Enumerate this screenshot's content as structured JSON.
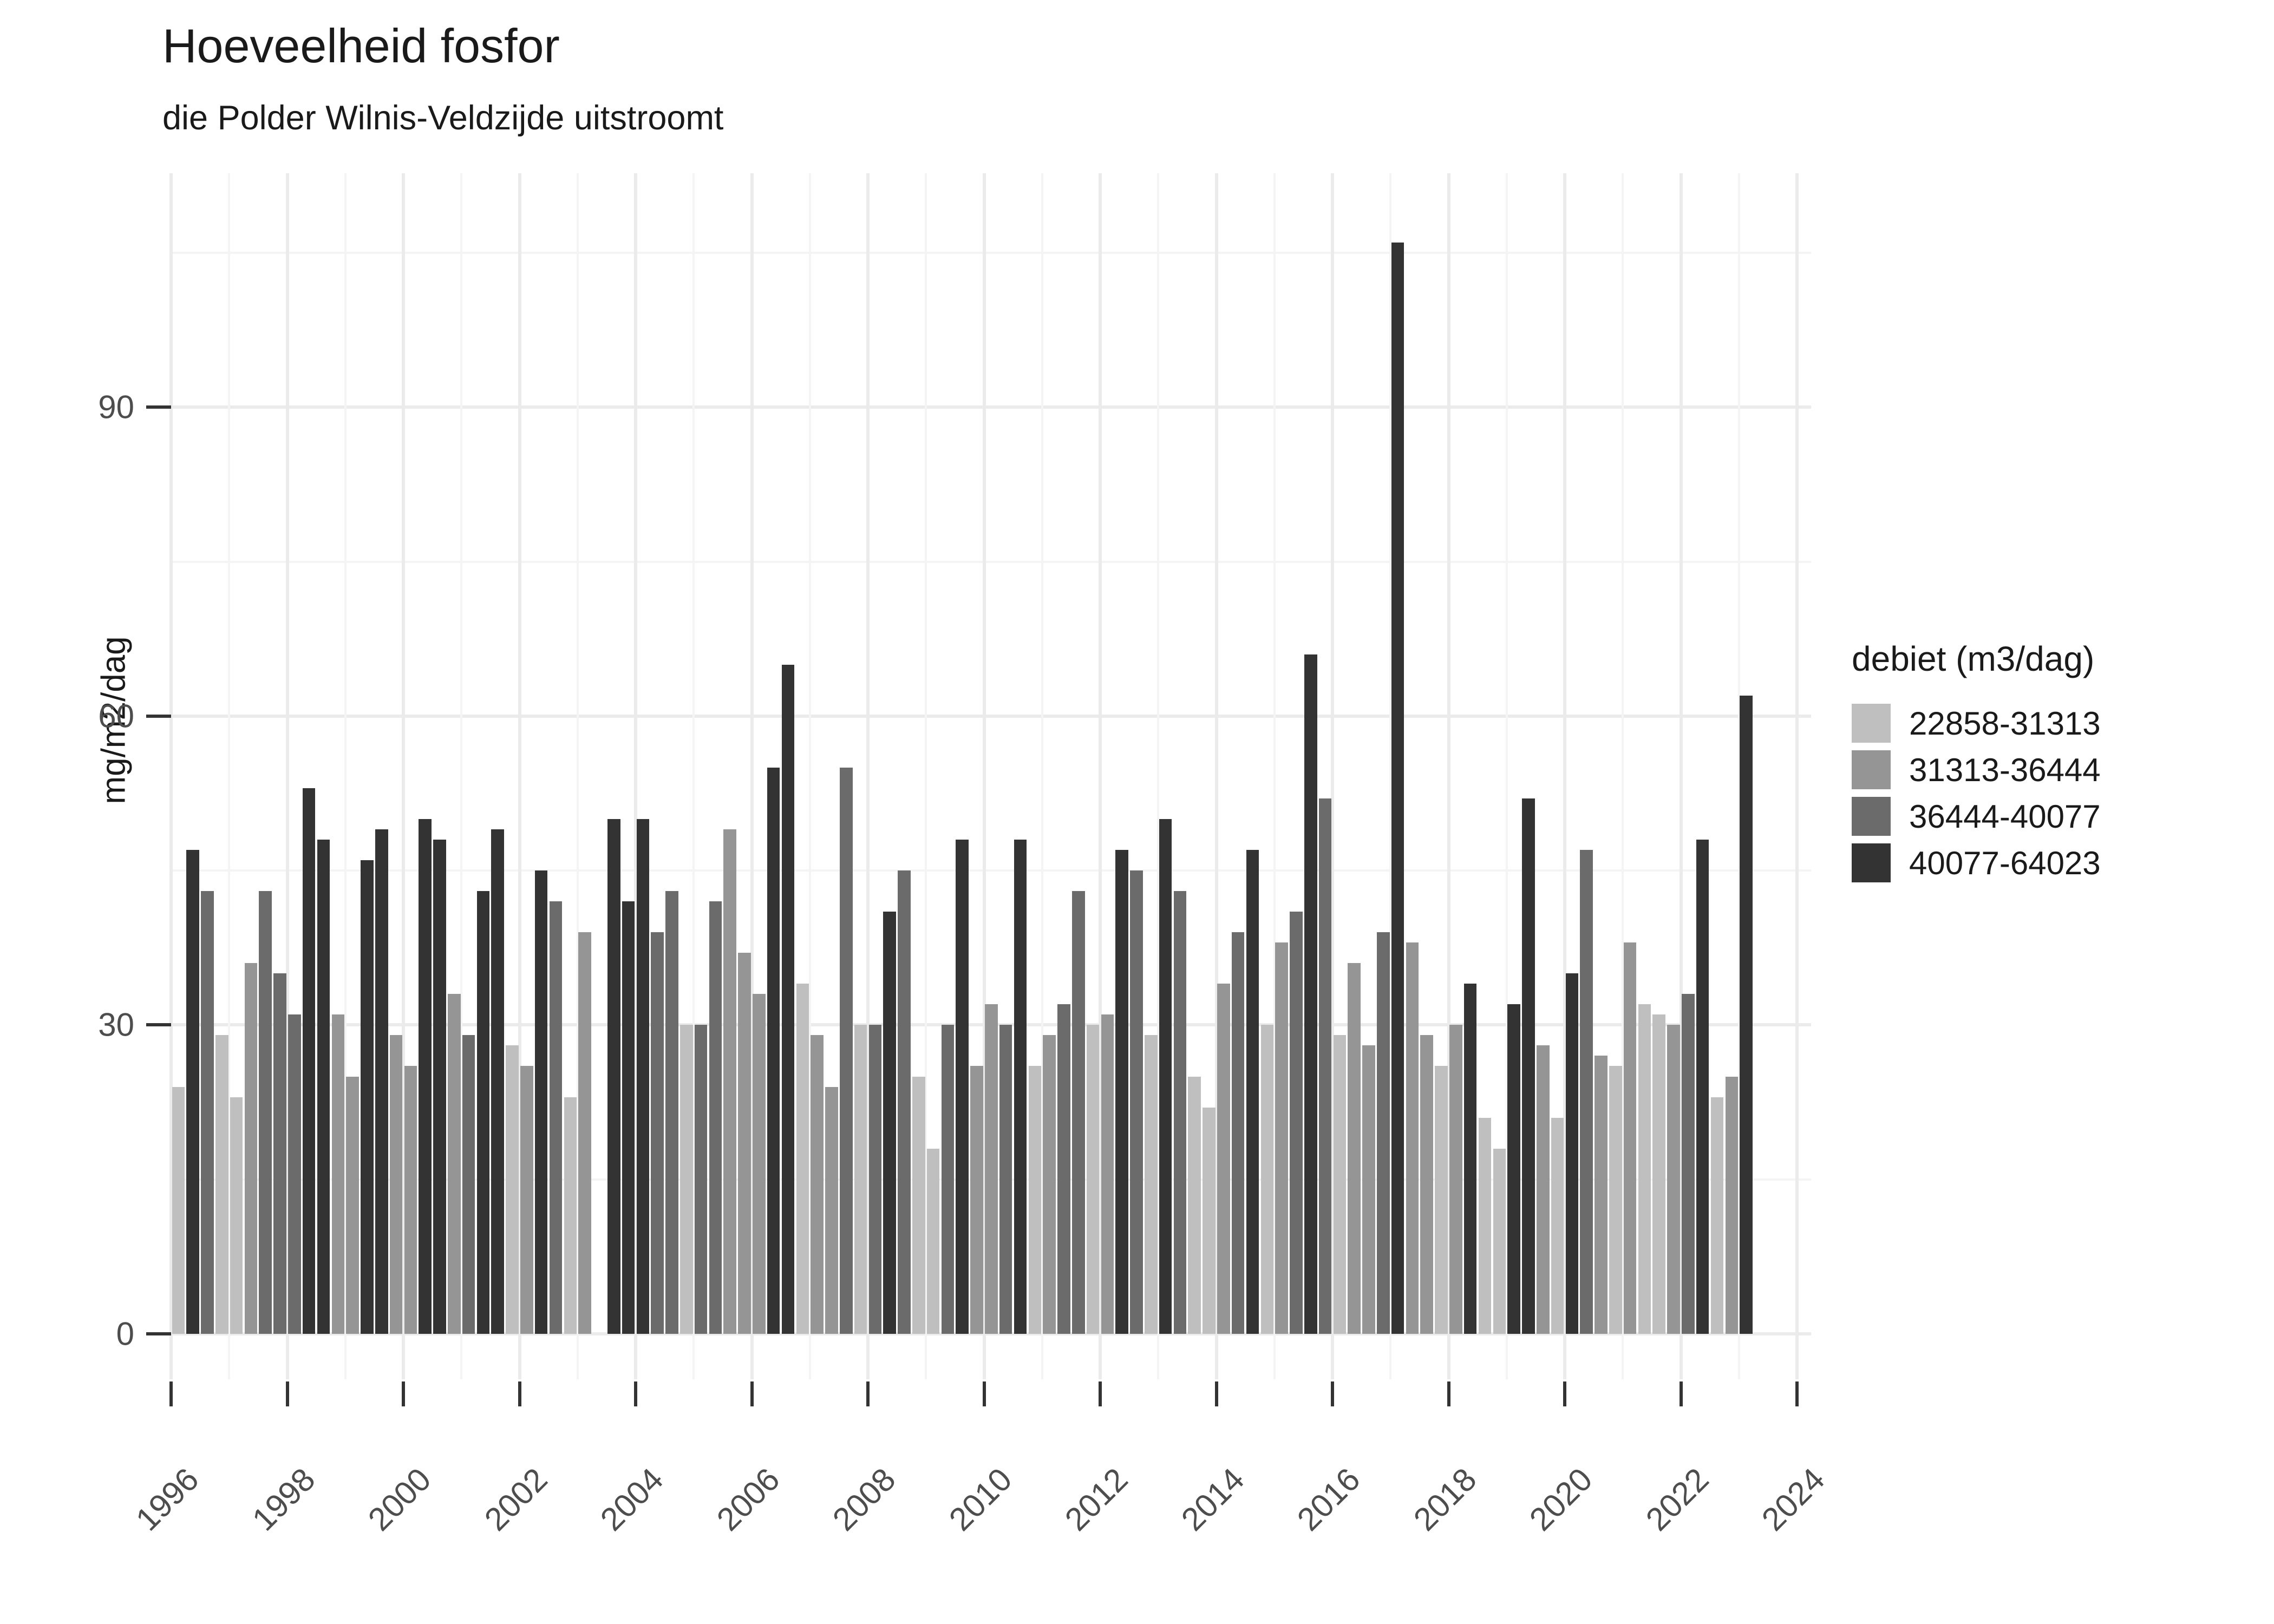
{
  "chart_data": {
    "type": "bar",
    "title": "Hoeveelheid fosfor",
    "subtitle": "die Polder Wilnis-Veldzijde uitstroomt",
    "ylabel": "mg/m2/dag",
    "xlabel": "",
    "grid": "on",
    "legend_position": "right",
    "legend": {
      "title": "debiet (m3/dag)",
      "entries": [
        {
          "label": "22858-31313",
          "color": "#bfbfbf"
        },
        {
          "label": "31313-36444",
          "color": "#959595"
        },
        {
          "label": "36444-40077",
          "color": "#6b6b6b"
        },
        {
          "label": "40077-64023",
          "color": "#333333"
        }
      ]
    },
    "y_axis": {
      "ticks": [
        0,
        30,
        60,
        90
      ],
      "minor_ticks": [
        15,
        45,
        75,
        105
      ],
      "ylim": [
        0,
        117
      ]
    },
    "x_axis": {
      "major_years": [
        1996,
        1998,
        2000,
        2002,
        2004,
        2006,
        2008,
        2010,
        2012,
        2014,
        2016,
        2018,
        2020,
        2022,
        2024
      ],
      "minor_years": [
        1997,
        1999,
        2001,
        2003,
        2005,
        2007,
        2009,
        2011,
        2013,
        2015,
        2017,
        2019,
        2021,
        2023
      ],
      "range": [
        1996,
        2024
      ]
    },
    "bars_note": "cat is an index into legend.entries; v is mg/m2/dag; s is season slot 0-3 within year",
    "years": [
      {
        "year": 1996,
        "bars": [
          {
            "cat": 0,
            "v": 24
          },
          {
            "cat": 3,
            "v": 47
          },
          {
            "cat": 2,
            "v": 43
          },
          {
            "cat": 0,
            "v": 29
          }
        ]
      },
      {
        "year": 1997,
        "bars": [
          {
            "cat": 0,
            "v": 23
          },
          {
            "cat": 1,
            "v": 36
          },
          {
            "cat": 2,
            "v": 43
          },
          {
            "cat": 2,
            "v": 35
          }
        ]
      },
      {
        "year": 1998,
        "bars": [
          {
            "cat": 2,
            "v": 31
          },
          {
            "cat": 3,
            "v": 53
          },
          {
            "cat": 3,
            "v": 48
          },
          {
            "cat": 1,
            "v": 31
          }
        ]
      },
      {
        "year": 1999,
        "bars": [
          {
            "cat": 1,
            "v": 25
          },
          {
            "cat": 3,
            "v": 46
          },
          {
            "cat": 3,
            "v": 49
          },
          {
            "cat": 1,
            "v": 29
          }
        ]
      },
      {
        "year": 2000,
        "bars": [
          {
            "cat": 1,
            "v": 26
          },
          {
            "cat": 3,
            "v": 50
          },
          {
            "cat": 3,
            "v": 48
          },
          {
            "cat": 1,
            "v": 33
          }
        ]
      },
      {
        "year": 2001,
        "bars": [
          {
            "cat": 2,
            "v": 29
          },
          {
            "cat": 3,
            "v": 43
          },
          {
            "cat": 3,
            "v": 49
          },
          {
            "cat": 0,
            "v": 28
          }
        ]
      },
      {
        "year": 2002,
        "bars": [
          {
            "cat": 1,
            "v": 26
          },
          {
            "cat": 3,
            "v": 45
          },
          {
            "cat": 2,
            "v": 42
          },
          {
            "cat": 0,
            "v": 23
          }
        ]
      },
      {
        "year": 2003,
        "bars": [
          {
            "cat": 1,
            "v": 39,
            "s": 0
          },
          {
            "cat": 3,
            "v": 50,
            "s": 2
          },
          {
            "cat": 3,
            "v": 42,
            "s": 3
          }
        ]
      },
      {
        "year": 2004,
        "bars": [
          {
            "cat": 3,
            "v": 50
          },
          {
            "cat": 2,
            "v": 39
          },
          {
            "cat": 2,
            "v": 43
          },
          {
            "cat": 0,
            "v": 30
          }
        ]
      },
      {
        "year": 2005,
        "bars": [
          {
            "cat": 2,
            "v": 30
          },
          {
            "cat": 2,
            "v": 42
          },
          {
            "cat": 1,
            "v": 49
          },
          {
            "cat": 1,
            "v": 37
          }
        ]
      },
      {
        "year": 2006,
        "bars": [
          {
            "cat": 1,
            "v": 33
          },
          {
            "cat": 3,
            "v": 55
          },
          {
            "cat": 3,
            "v": 65
          },
          {
            "cat": 0,
            "v": 34
          }
        ]
      },
      {
        "year": 2007,
        "bars": [
          {
            "cat": 1,
            "v": 29
          },
          {
            "cat": 1,
            "v": 24
          },
          {
            "cat": 2,
            "v": 55
          },
          {
            "cat": 0,
            "v": 30
          }
        ]
      },
      {
        "year": 2008,
        "bars": [
          {
            "cat": 2,
            "v": 30
          },
          {
            "cat": 3,
            "v": 41
          },
          {
            "cat": 2,
            "v": 45
          },
          {
            "cat": 0,
            "v": 25
          }
        ]
      },
      {
        "year": 2009,
        "bars": [
          {
            "cat": 0,
            "v": 18
          },
          {
            "cat": 2,
            "v": 30
          },
          {
            "cat": 3,
            "v": 48
          },
          {
            "cat": 1,
            "v": 26
          }
        ]
      },
      {
        "year": 2010,
        "bars": [
          {
            "cat": 1,
            "v": 32
          },
          {
            "cat": 2,
            "v": 30
          },
          {
            "cat": 3,
            "v": 48
          },
          {
            "cat": 0,
            "v": 26
          }
        ]
      },
      {
        "year": 2011,
        "bars": [
          {
            "cat": 1,
            "v": 29
          },
          {
            "cat": 2,
            "v": 32
          },
          {
            "cat": 2,
            "v": 43
          },
          {
            "cat": 0,
            "v": 30
          }
        ]
      },
      {
        "year": 2012,
        "bars": [
          {
            "cat": 1,
            "v": 31
          },
          {
            "cat": 3,
            "v": 47
          },
          {
            "cat": 2,
            "v": 45
          },
          {
            "cat": 0,
            "v": 29
          }
        ]
      },
      {
        "year": 2013,
        "bars": [
          {
            "cat": 3,
            "v": 50
          },
          {
            "cat": 2,
            "v": 43
          },
          {
            "cat": 0,
            "v": 25
          },
          {
            "cat": 0,
            "v": 22
          }
        ]
      },
      {
        "year": 2014,
        "bars": [
          {
            "cat": 1,
            "v": 34
          },
          {
            "cat": 2,
            "v": 39
          },
          {
            "cat": 3,
            "v": 47
          },
          {
            "cat": 0,
            "v": 30
          }
        ]
      },
      {
        "year": 2015,
        "bars": [
          {
            "cat": 1,
            "v": 38
          },
          {
            "cat": 2,
            "v": 41
          },
          {
            "cat": 3,
            "v": 66
          },
          {
            "cat": 2,
            "v": 52
          }
        ]
      },
      {
        "year": 2016,
        "bars": [
          {
            "cat": 0,
            "v": 29
          },
          {
            "cat": 1,
            "v": 36
          },
          {
            "cat": 1,
            "v": 28
          },
          {
            "cat": 2,
            "v": 39
          }
        ]
      },
      {
        "year": 2017,
        "bars": [
          {
            "cat": 3,
            "v": 106
          },
          {
            "cat": 1,
            "v": 38
          },
          {
            "cat": 1,
            "v": 29
          },
          {
            "cat": 0,
            "v": 26
          }
        ]
      },
      {
        "year": 2018,
        "bars": [
          {
            "cat": 1,
            "v": 30
          },
          {
            "cat": 3,
            "v": 34
          },
          {
            "cat": 0,
            "v": 21
          },
          {
            "cat": 0,
            "v": 18
          }
        ]
      },
      {
        "year": 2019,
        "bars": [
          {
            "cat": 3,
            "v": 32
          },
          {
            "cat": 3,
            "v": 52
          },
          {
            "cat": 1,
            "v": 28
          },
          {
            "cat": 0,
            "v": 21
          }
        ]
      },
      {
        "year": 2020,
        "bars": [
          {
            "cat": 3,
            "v": 35
          },
          {
            "cat": 2,
            "v": 47
          },
          {
            "cat": 1,
            "v": 27
          },
          {
            "cat": 0,
            "v": 26
          }
        ]
      },
      {
        "year": 2021,
        "bars": [
          {
            "cat": 1,
            "v": 38
          },
          {
            "cat": 0,
            "v": 32
          },
          {
            "cat": 0,
            "v": 31
          },
          {
            "cat": 1,
            "v": 30
          }
        ]
      },
      {
        "year": 2022,
        "bars": [
          {
            "cat": 2,
            "v": 33
          },
          {
            "cat": 3,
            "v": 48
          },
          {
            "cat": 0,
            "v": 23
          },
          {
            "cat": 1,
            "v": 25
          }
        ]
      },
      {
        "year": 2023,
        "bars": [
          {
            "cat": 3,
            "v": 62,
            "s": 0
          }
        ]
      }
    ]
  }
}
